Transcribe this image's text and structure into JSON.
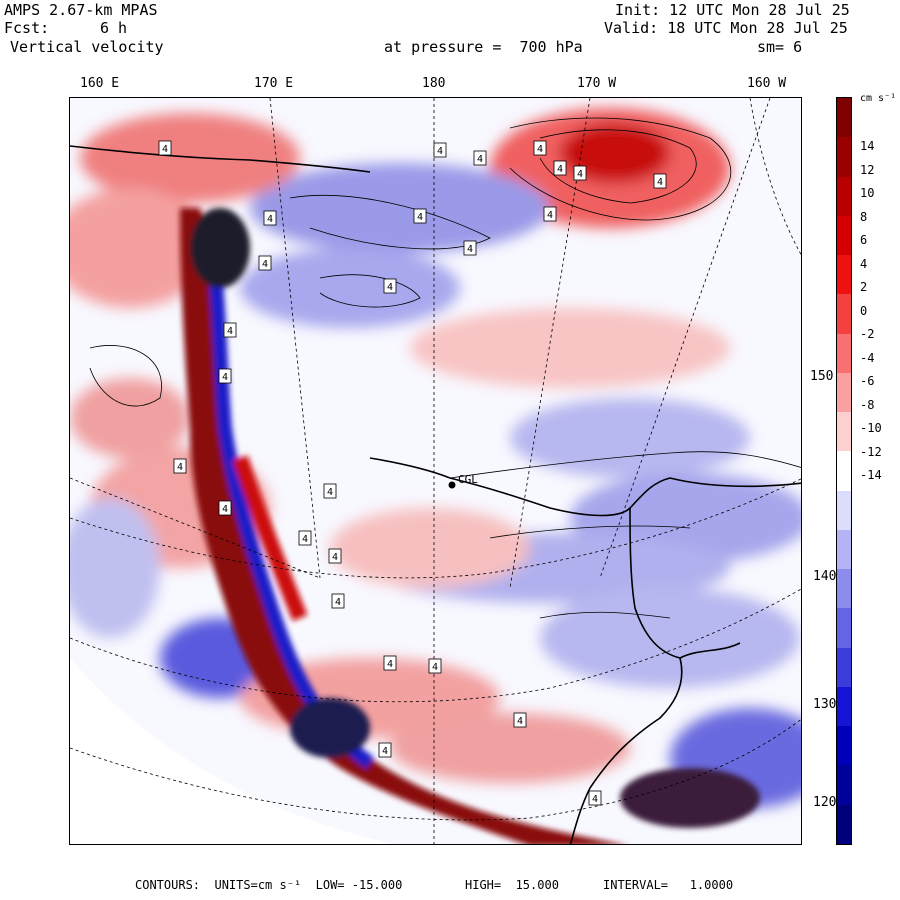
{
  "header": {
    "model": "AMPS 2.67-km MPAS",
    "forecast_label": "Fcst:",
    "forecast_value": "6 h",
    "field": "Vertical velocity",
    "init": "Init: 12 UTC Mon 28 Jul 25",
    "valid": "Valid: 18 UTC Mon 28 Jul 25",
    "pressure": "at pressure =  700 hPa",
    "smoothing": "sm= 6"
  },
  "longitude_labels": [
    "160 E",
    "170 E",
    "180",
    "170 W",
    "160 W"
  ],
  "latitude_labels": [
    "150 W",
    "140 W",
    "130 W",
    "120 W"
  ],
  "station_label": "CGL",
  "contour_label": "4",
  "colorbar": {
    "units": "cm s⁻¹",
    "ticks": [
      "14",
      "12",
      "10",
      "8",
      "6",
      "4",
      "2",
      "0",
      "-2",
      "-4",
      "-6",
      "-8",
      "-10",
      "-12",
      "-14"
    ],
    "colors": [
      "#7f0000",
      "#9b0000",
      "#b80000",
      "#d40000",
      "#ef1010",
      "#f54040",
      "#f87070",
      "#fba0a0",
      "#fdd0d0",
      "#ffffff",
      "#dcdcfc",
      "#b4b4f4",
      "#8c8cec",
      "#6464e4",
      "#3c3cdc",
      "#1414d4",
      "#0000b8",
      "#00009a",
      "#00007c"
    ]
  },
  "footer": {
    "contours": "CONTOURS:  UNITS=cm s⁻¹  LOW= -15.000",
    "high": "HIGH=  15.000",
    "interval": "INTERVAL=   1.0000"
  }
}
